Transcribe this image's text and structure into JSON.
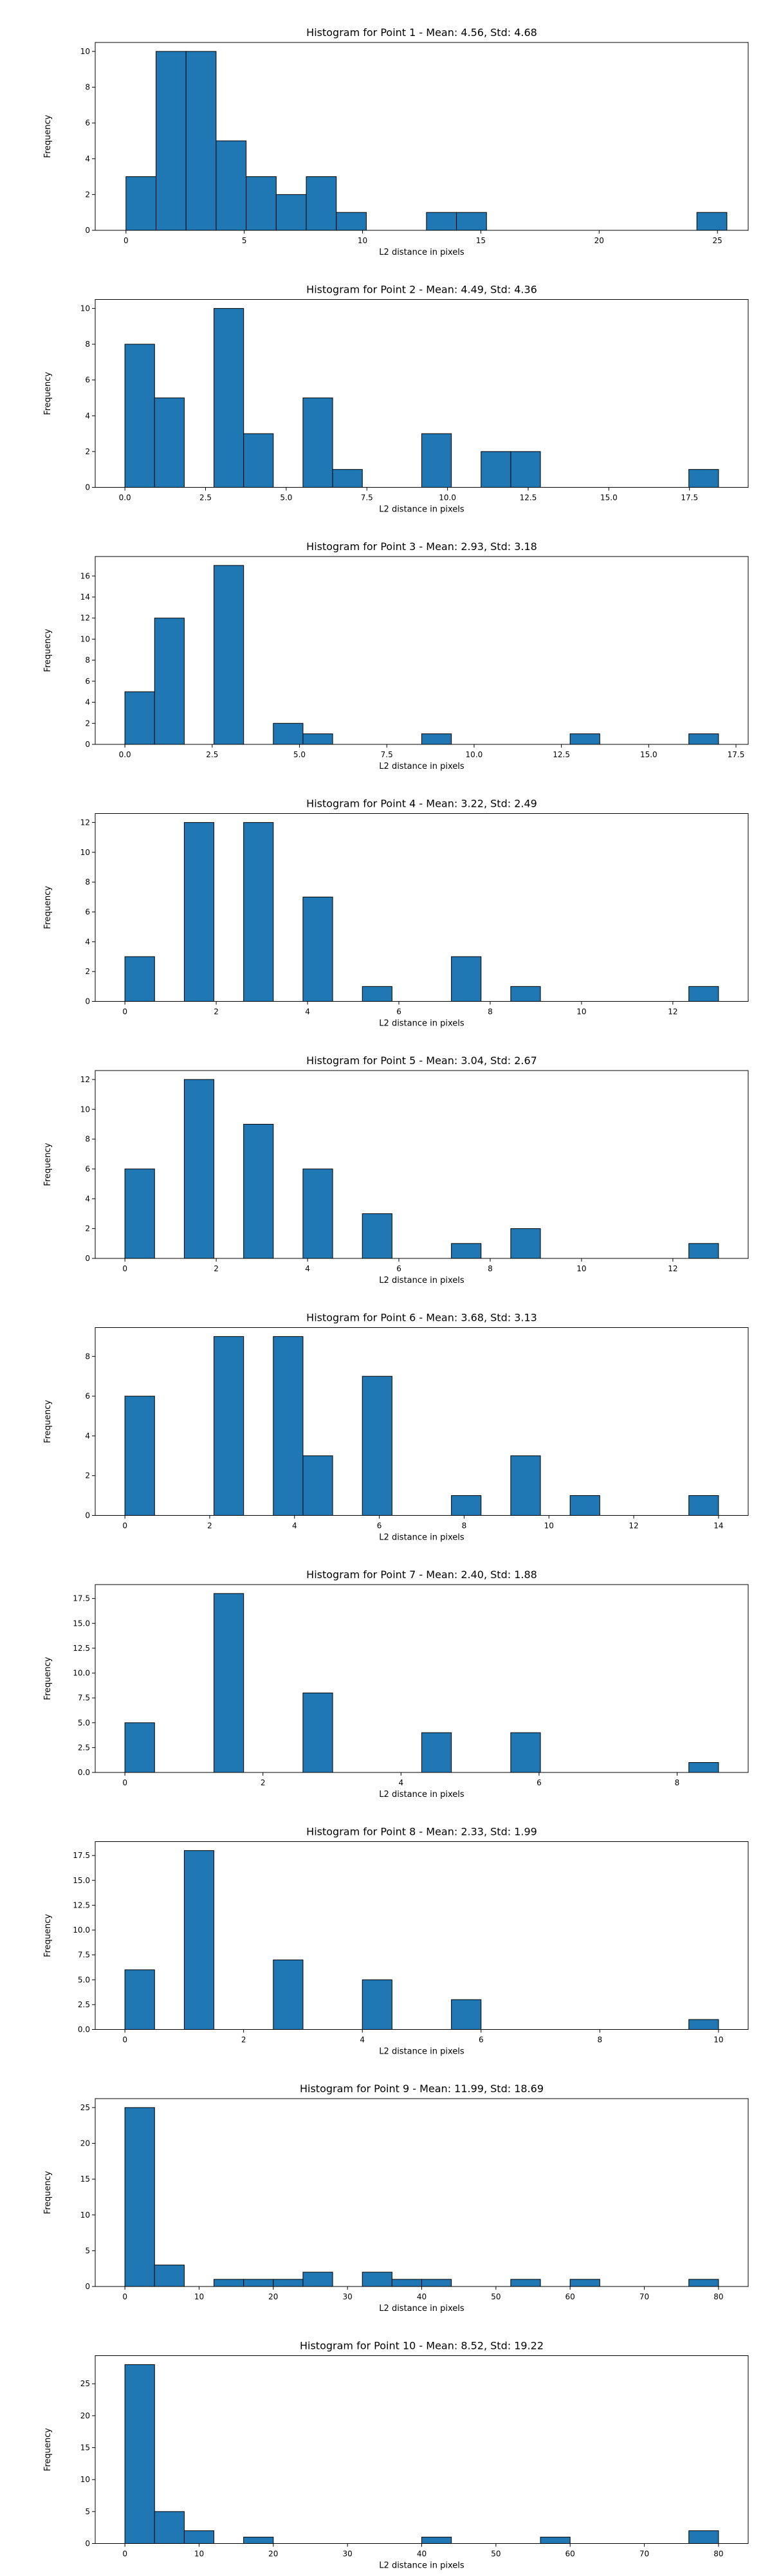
{
  "colors": {
    "bar": "#1f77b4",
    "edge": "#000000",
    "background": "#ffffff"
  },
  "chart_data": [
    {
      "type": "bar",
      "title": "Histogram for Point 1 - Mean: 4.56, Std: 4.68",
      "xlabel": "L2 distance in pixels",
      "ylabel": "Frequency",
      "xlim": [
        -1.3,
        26.3
      ],
      "ylim": [
        0,
        10.5
      ],
      "xticks": [
        0,
        5,
        10,
        15,
        20,
        25
      ],
      "xtick_labels": [
        "0",
        "5",
        "10",
        "15",
        "20",
        "25"
      ],
      "yticks": [
        0,
        2,
        4,
        6,
        8,
        10
      ],
      "ytick_labels": [
        "0",
        "2",
        "4",
        "6",
        "8",
        "10"
      ],
      "bin_edges": [
        0.0,
        1.27,
        2.54,
        3.81,
        5.08,
        6.35,
        7.62,
        8.89,
        10.16,
        11.43,
        12.7,
        13.97,
        15.24,
        16.51,
        17.78,
        19.05,
        20.32,
        21.59,
        22.86,
        24.13,
        25.4
      ],
      "counts": [
        3,
        10,
        10,
        5,
        3,
        2,
        3,
        1,
        0,
        0,
        1,
        1,
        0,
        0,
        0,
        0,
        0,
        0,
        0,
        1
      ]
    },
    {
      "type": "bar",
      "title": "Histogram for Point 2 - Mean: 4.49, Std: 4.36",
      "xlabel": "L2 distance in pixels",
      "ylabel": "Frequency",
      "xlim": [
        -0.92,
        19.32
      ],
      "ylim": [
        0,
        10.5
      ],
      "xticks": [
        0.0,
        2.5,
        5.0,
        7.5,
        10.0,
        12.5,
        15.0,
        17.5
      ],
      "xtick_labels": [
        "0.0",
        "2.5",
        "5.0",
        "7.5",
        "10.0",
        "12.5",
        "15.0",
        "17.5"
      ],
      "yticks": [
        0,
        2,
        4,
        6,
        8,
        10
      ],
      "ytick_labels": [
        "0",
        "2",
        "4",
        "6",
        "8",
        "10"
      ],
      "bin_edges": [
        0.0,
        0.92,
        1.84,
        2.76,
        3.68,
        4.6,
        5.52,
        6.44,
        7.36,
        8.28,
        9.2,
        10.12,
        11.04,
        11.96,
        12.88,
        13.8,
        14.72,
        15.64,
        16.56,
        17.48,
        18.4
      ],
      "counts": [
        8,
        5,
        0,
        10,
        3,
        0,
        5,
        1,
        0,
        0,
        3,
        0,
        2,
        2,
        0,
        0,
        0,
        0,
        0,
        1
      ]
    },
    {
      "type": "bar",
      "title": "Histogram for Point 3 - Mean: 2.93, Std: 3.18",
      "xlabel": "L2 distance in pixels",
      "ylabel": "Frequency",
      "xlim": [
        -0.85,
        17.85
      ],
      "ylim": [
        0,
        17.85
      ],
      "xticks": [
        0.0,
        2.5,
        5.0,
        7.5,
        10.0,
        12.5,
        15.0,
        17.5
      ],
      "xtick_labels": [
        "0.0",
        "2.5",
        "5.0",
        "7.5",
        "10.0",
        "12.5",
        "15.0",
        "17.5"
      ],
      "yticks": [
        0,
        2,
        4,
        6,
        8,
        10,
        12,
        14,
        16
      ],
      "ytick_labels": [
        "0",
        "2",
        "4",
        "6",
        "8",
        "10",
        "12",
        "14",
        "16"
      ],
      "bin_edges": [
        0.0,
        0.85,
        1.7,
        2.55,
        3.4,
        4.25,
        5.1,
        5.95,
        6.8,
        7.65,
        8.5,
        9.35,
        10.2,
        11.05,
        11.9,
        12.75,
        13.6,
        14.45,
        15.3,
        16.15,
        17.0
      ],
      "counts": [
        5,
        12,
        0,
        17,
        0,
        2,
        1,
        0,
        0,
        0,
        1,
        0,
        0,
        0,
        0,
        1,
        0,
        0,
        0,
        1
      ]
    },
    {
      "type": "bar",
      "title": "Histogram for Point 4 - Mean: 3.22, Std: 2.49",
      "xlabel": "L2 distance in pixels",
      "ylabel": "Frequency",
      "xlim": [
        -0.65,
        13.65
      ],
      "ylim": [
        0,
        12.6
      ],
      "xticks": [
        0,
        2,
        4,
        6,
        8,
        10,
        12
      ],
      "xtick_labels": [
        "0",
        "2",
        "4",
        "6",
        "8",
        "10",
        "12"
      ],
      "yticks": [
        0,
        2,
        4,
        6,
        8,
        10,
        12
      ],
      "ytick_labels": [
        "0",
        "2",
        "4",
        "6",
        "8",
        "10",
        "12"
      ],
      "bin_edges": [
        0.0,
        0.65,
        1.3,
        1.95,
        2.6,
        3.25,
        3.9,
        4.55,
        5.2,
        5.85,
        6.5,
        7.15,
        7.8,
        8.45,
        9.1,
        9.75,
        10.4,
        11.05,
        11.7,
        12.35,
        13.0
      ],
      "counts": [
        3,
        0,
        12,
        0,
        12,
        0,
        7,
        0,
        1,
        0,
        0,
        3,
        0,
        1,
        0,
        0,
        0,
        0,
        0,
        1
      ]
    },
    {
      "type": "bar",
      "title": "Histogram for Point 5 - Mean: 3.04, Std: 2.67",
      "xlabel": "L2 distance in pixels",
      "ylabel": "Frequency",
      "xlim": [
        -0.65,
        13.65
      ],
      "ylim": [
        0,
        12.6
      ],
      "xticks": [
        0,
        2,
        4,
        6,
        8,
        10,
        12
      ],
      "xtick_labels": [
        "0",
        "2",
        "4",
        "6",
        "8",
        "10",
        "12"
      ],
      "yticks": [
        0,
        2,
        4,
        6,
        8,
        10,
        12
      ],
      "ytick_labels": [
        "0",
        "2",
        "4",
        "6",
        "8",
        "10",
        "12"
      ],
      "bin_edges": [
        0.0,
        0.65,
        1.3,
        1.95,
        2.6,
        3.25,
        3.9,
        4.55,
        5.2,
        5.85,
        6.5,
        7.15,
        7.8,
        8.45,
        9.1,
        9.75,
        10.4,
        11.05,
        11.7,
        12.35,
        13.0
      ],
      "counts": [
        6,
        0,
        12,
        0,
        9,
        0,
        6,
        0,
        3,
        0,
        0,
        1,
        0,
        2,
        0,
        0,
        0,
        0,
        0,
        1
      ]
    },
    {
      "type": "bar",
      "title": "Histogram for Point 6 - Mean: 3.68, Std: 3.13",
      "xlabel": "L2 distance in pixels",
      "ylabel": "Frequency",
      "xlim": [
        -0.7,
        14.7
      ],
      "ylim": [
        0,
        9.45
      ],
      "xticks": [
        0,
        2,
        4,
        6,
        8,
        10,
        12,
        14
      ],
      "xtick_labels": [
        "0",
        "2",
        "4",
        "6",
        "8",
        "10",
        "12",
        "14"
      ],
      "yticks": [
        0,
        2,
        4,
        6,
        8
      ],
      "ytick_labels": [
        "0",
        "2",
        "4",
        "6",
        "8"
      ],
      "bin_edges": [
        0.0,
        0.7,
        1.4,
        2.1,
        2.8,
        3.5,
        4.2,
        4.9,
        5.6,
        6.3,
        7.0,
        7.7,
        8.4,
        9.1,
        9.8,
        10.5,
        11.2,
        11.9,
        12.6,
        13.3,
        14.0
      ],
      "counts": [
        6,
        0,
        0,
        9,
        0,
        9,
        3,
        0,
        7,
        0,
        0,
        1,
        0,
        3,
        0,
        1,
        0,
        0,
        0,
        1
      ]
    },
    {
      "type": "bar",
      "title": "Histogram for Point 7 - Mean: 2.40, Std: 1.88",
      "xlabel": "L2 distance in pixels",
      "ylabel": "Frequency",
      "xlim": [
        -0.43,
        9.03
      ],
      "ylim": [
        0,
        18.9
      ],
      "xticks": [
        0,
        2,
        4,
        6,
        8
      ],
      "xtick_labels": [
        "0",
        "2",
        "4",
        "6",
        "8"
      ],
      "yticks": [
        0,
        2.5,
        5.0,
        7.5,
        10.0,
        12.5,
        15.0,
        17.5
      ],
      "ytick_labels": [
        "0.0",
        "2.5",
        "5.0",
        "7.5",
        "10.0",
        "12.5",
        "15.0",
        "17.5"
      ],
      "bin_edges": [
        0.0,
        0.43,
        0.86,
        1.29,
        1.72,
        2.15,
        2.58,
        3.01,
        3.44,
        3.87,
        4.3,
        4.73,
        5.16,
        5.59,
        6.02,
        6.45,
        6.88,
        7.31,
        7.74,
        8.17,
        8.6
      ],
      "counts": [
        5,
        0,
        0,
        18,
        0,
        0,
        8,
        0,
        0,
        0,
        4,
        0,
        0,
        4,
        0,
        0,
        0,
        0,
        0,
        1
      ]
    },
    {
      "type": "bar",
      "title": "Histogram for Point 8 - Mean: 2.33, Std: 1.99",
      "xlabel": "L2 distance in pixels",
      "ylabel": "Frequency",
      "xlim": [
        -0.5,
        10.5
      ],
      "ylim": [
        0,
        18.9
      ],
      "xticks": [
        0,
        2,
        4,
        6,
        8,
        10
      ],
      "xtick_labels": [
        "0",
        "2",
        "4",
        "6",
        "8",
        "10"
      ],
      "yticks": [
        0,
        2.5,
        5.0,
        7.5,
        10.0,
        12.5,
        15.0,
        17.5
      ],
      "ytick_labels": [
        "0.0",
        "2.5",
        "5.0",
        "7.5",
        "10.0",
        "12.5",
        "15.0",
        "17.5"
      ],
      "bin_edges": [
        0.0,
        0.5,
        1.0,
        1.5,
        2.0,
        2.5,
        3.0,
        3.5,
        4.0,
        4.5,
        5.0,
        5.5,
        6.0,
        6.5,
        7.0,
        7.5,
        8.0,
        8.5,
        9.0,
        9.5,
        10.0
      ],
      "counts": [
        6,
        0,
        18,
        0,
        0,
        7,
        0,
        0,
        5,
        0,
        0,
        3,
        0,
        0,
        0,
        0,
        0,
        0,
        0,
        1
      ]
    },
    {
      "type": "bar",
      "title": "Histogram for Point 9 - Mean: 11.99, Std: 18.69",
      "xlabel": "L2 distance in pixels",
      "ylabel": "Frequency",
      "xlim": [
        -4.0,
        84.0
      ],
      "ylim": [
        0,
        26.25
      ],
      "xticks": [
        0,
        10,
        20,
        30,
        40,
        50,
        60,
        70,
        80
      ],
      "xtick_labels": [
        "0",
        "10",
        "20",
        "30",
        "40",
        "50",
        "60",
        "70",
        "80"
      ],
      "yticks": [
        0,
        5,
        10,
        15,
        20,
        25
      ],
      "ytick_labels": [
        "0",
        "5",
        "10",
        "15",
        "20",
        "25"
      ],
      "bin_edges": [
        0,
        4,
        8,
        12,
        16,
        20,
        24,
        28,
        32,
        36,
        40,
        44,
        48,
        52,
        56,
        60,
        64,
        68,
        72,
        76,
        80
      ],
      "counts": [
        25,
        3,
        0,
        1,
        1,
        1,
        2,
        0,
        2,
        1,
        1,
        0,
        0,
        1,
        0,
        1,
        0,
        0,
        0,
        1
      ]
    },
    {
      "type": "bar",
      "title": "Histogram for Point 10 - Mean: 8.52, Std: 19.22",
      "xlabel": "L2 distance in pixels",
      "ylabel": "Frequency",
      "xlim": [
        -4.0,
        84.0
      ],
      "ylim": [
        0,
        29.4
      ],
      "xticks": [
        0,
        10,
        20,
        30,
        40,
        50,
        60,
        70,
        80
      ],
      "xtick_labels": [
        "0",
        "10",
        "20",
        "30",
        "40",
        "50",
        "60",
        "70",
        "80"
      ],
      "yticks": [
        0,
        5,
        10,
        15,
        20,
        25
      ],
      "ytick_labels": [
        "0",
        "5",
        "10",
        "15",
        "20",
        "25"
      ],
      "bin_edges": [
        0,
        4,
        8,
        12,
        16,
        20,
        24,
        28,
        32,
        36,
        40,
        44,
        48,
        52,
        56,
        60,
        64,
        68,
        72,
        76,
        80
      ],
      "counts": [
        28,
        5,
        2,
        0,
        1,
        0,
        0,
        0,
        0,
        0,
        1,
        0,
        0,
        0,
        1,
        0,
        0,
        0,
        0,
        2
      ]
    }
  ]
}
